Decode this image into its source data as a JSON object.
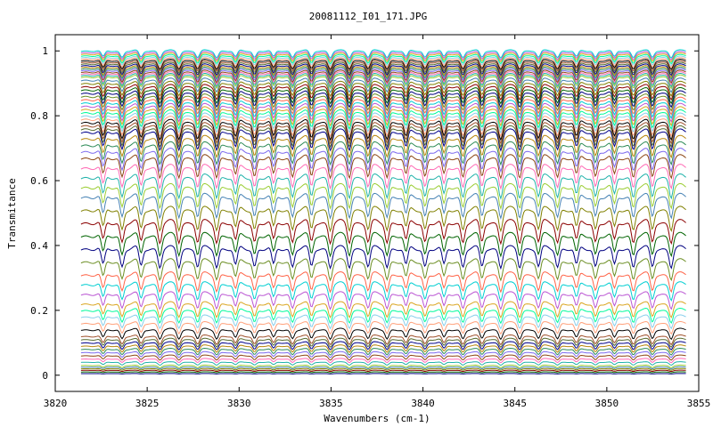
{
  "chart_data": {
    "type": "line",
    "title": "20081112_I01_171.JPG",
    "xlabel": "Wavenumbers (cm-1)",
    "ylabel": "Transmitance",
    "xlim": [
      3820,
      3855
    ],
    "ylim": [
      -0.05,
      1.05
    ],
    "x_ticks": [
      3820,
      3825,
      3830,
      3835,
      3840,
      3845,
      3850,
      3855
    ],
    "y_ticks": [
      0,
      0.2,
      0.4,
      0.6,
      0.8,
      1
    ],
    "x_tick_labels": [
      "3820",
      "3825",
      "3830",
      "3835",
      "3840",
      "3845",
      "3850",
      "3855"
    ],
    "y_tick_labels": [
      "0",
      "0.2",
      "0.4",
      "0.6",
      "0.8",
      "1"
    ],
    "x_range_of_data": [
      3821.4,
      3854.3
    ],
    "strong_absorption_lines_cm-1": [
      3821.9,
      3831.4,
      3834.9,
      3837.8
    ],
    "grid": false,
    "legend": "none",
    "series_count": 70,
    "series_baseline_transmittance": [
      0.005,
      0.01,
      0.015,
      0.02,
      0.025,
      0.03,
      0.04,
      0.05,
      0.06,
      0.07,
      0.08,
      0.09,
      0.1,
      0.11,
      0.12,
      0.14,
      0.16,
      0.18,
      0.2,
      0.22,
      0.25,
      0.28,
      0.31,
      0.35,
      0.39,
      0.43,
      0.47,
      0.51,
      0.55,
      0.58,
      0.61,
      0.64,
      0.67,
      0.69,
      0.71,
      0.73,
      0.75,
      0.76,
      0.77,
      0.78,
      0.79,
      0.8,
      0.81,
      0.82,
      0.83,
      0.84,
      0.85,
      0.86,
      0.87,
      0.88,
      0.89,
      0.9,
      0.91,
      0.92,
      0.925,
      0.93,
      0.935,
      0.94,
      0.945,
      0.95,
      0.955,
      0.96,
      0.965,
      0.97,
      0.975,
      0.98,
      0.985,
      0.99,
      0.995,
      1.0
    ],
    "series_colors": [
      "#000080",
      "#006400",
      "#8b0000",
      "#808000",
      "#4682b4",
      "#9acd32",
      "#20b2aa",
      "#ff69b4",
      "#8b4513",
      "#7b68ee",
      "#2e8b57",
      "#b8860b",
      "#00008b",
      "#556b2f",
      "#a0522d",
      "#000000",
      "#ffa07a",
      "#87ceeb",
      "#00fa9a",
      "#daa520",
      "#ba55d3",
      "#00ced1",
      "#ff6347",
      "#6b8e23"
    ]
  }
}
